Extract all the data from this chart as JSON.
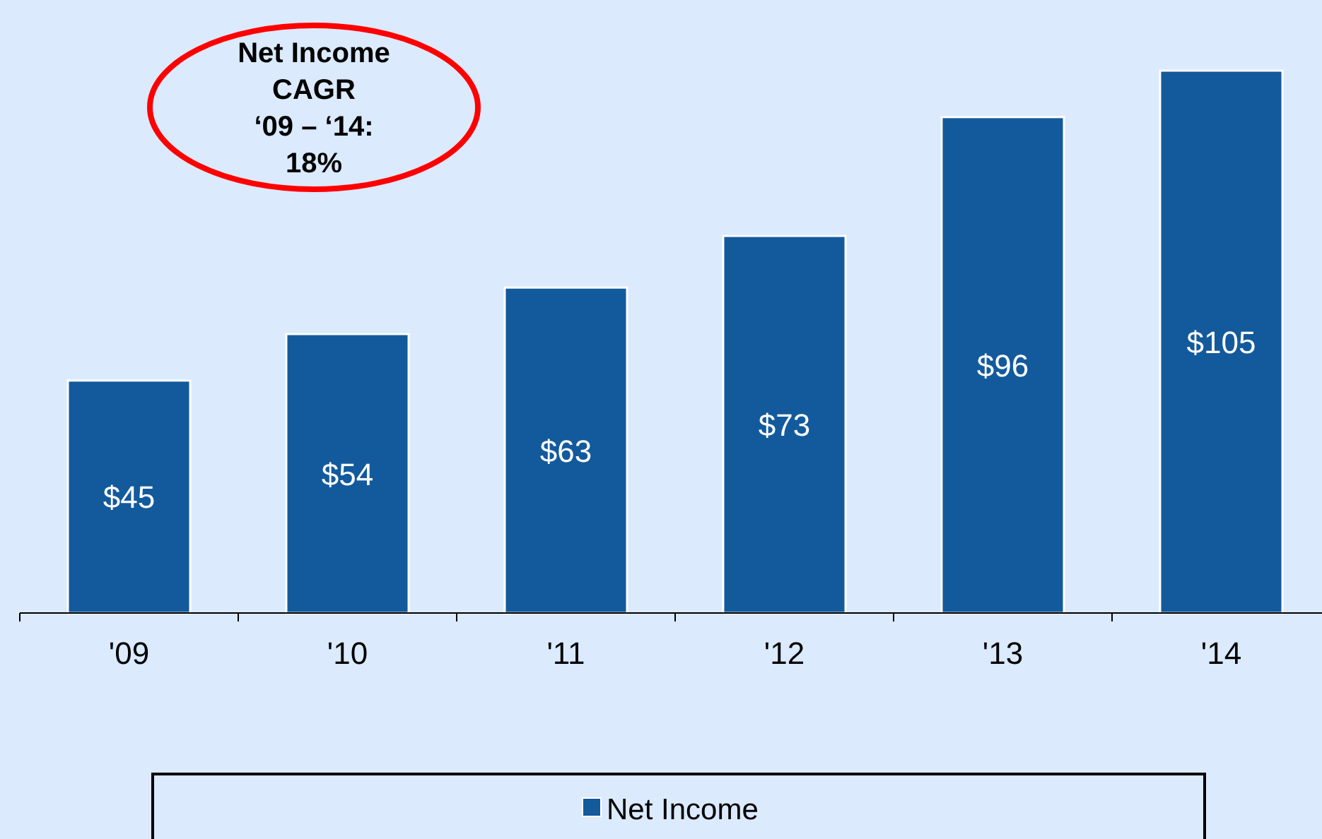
{
  "chart_data": {
    "type": "bar",
    "categories": [
      "'09",
      "'10",
      "'11",
      "'12",
      "'13",
      "'14"
    ],
    "series": [
      {
        "name": "Net Income",
        "color": "#135a9c",
        "values": [
          45,
          54,
          63,
          73,
          96,
          105
        ],
        "value_labels": [
          "$45",
          "$54",
          "$63",
          "$73",
          "$96",
          "$105"
        ]
      }
    ],
    "legend": "bottom",
    "annotations": [
      "Net Income\nCAGR\n‘09 – ‘14:\n18%"
    ]
  }
}
